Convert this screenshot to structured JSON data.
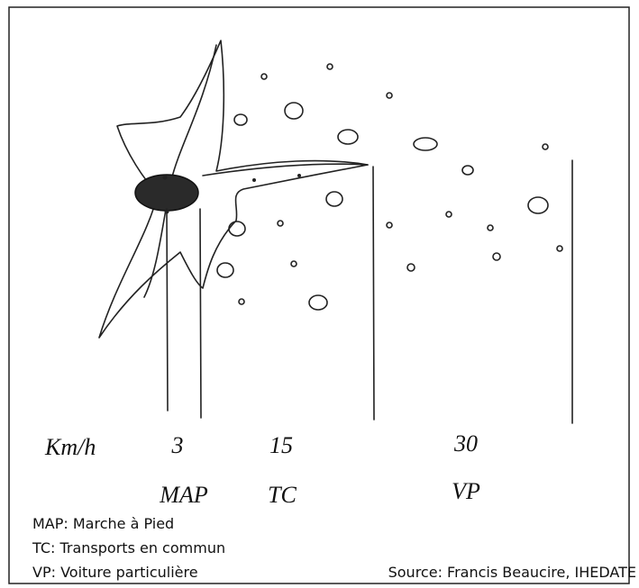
{
  "diagram": {
    "unit": "Km/h",
    "speeds": [
      3,
      15,
      30
    ],
    "modes": [
      "MAP",
      "TC",
      "VP"
    ]
  },
  "legend": [
    "MAP: Marche à Pied",
    "TC: Transports en commun",
    "VP: Voiture particulière"
  ],
  "source": "Source: Francis Beaucire, IHEDATE"
}
